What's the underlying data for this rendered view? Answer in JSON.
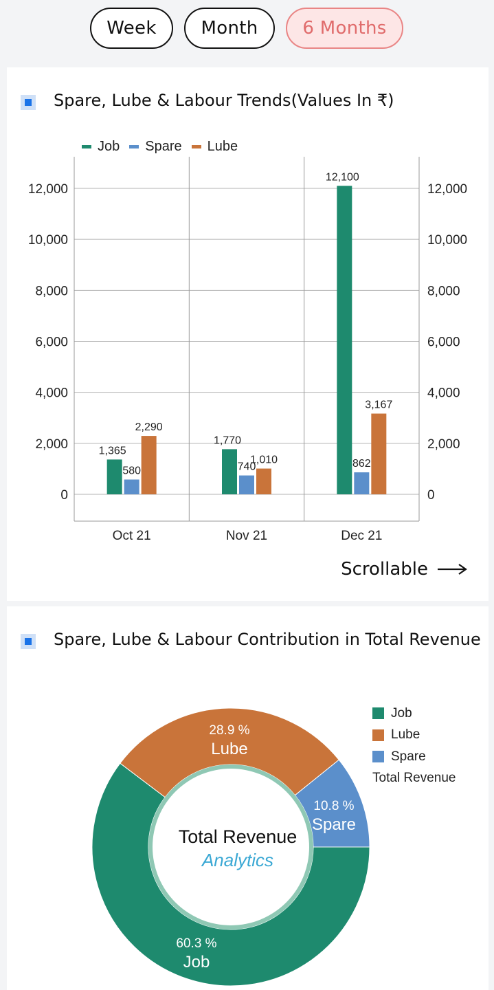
{
  "tabs": [
    {
      "label": "Week",
      "active": false
    },
    {
      "label": "Month",
      "active": false
    },
    {
      "label": "6 Months",
      "active": true
    }
  ],
  "colors": {
    "job": "#1e8a6e",
    "spare": "#5b8fcb",
    "lube": "#c9743a",
    "tab_active": "#e06b6b"
  },
  "bar_card": {
    "title": "Spare, Lube & Labour Trends(Values In ₹)",
    "legend": [
      "Job",
      "Spare",
      "Lube"
    ],
    "scroll_hint": "Scrollable"
  },
  "pie_card": {
    "title": "Spare, Lube & Labour Contribution in Total Revenue",
    "legend": [
      "Job",
      "Lube",
      "Spare",
      "Total Revenue"
    ],
    "center_line1": "Total Revenue",
    "center_line2": "Analytics",
    "slice_labels": [
      {
        "pct": "60.3 %",
        "name": "Job"
      },
      {
        "pct": "28.9 %",
        "name": "Lube"
      },
      {
        "pct": "10.8 %",
        "name": "Spare"
      }
    ]
  },
  "chart_data": [
    {
      "type": "bar",
      "title": "Spare, Lube & Labour Trends(Values In ₹)",
      "categories": [
        "Oct 21",
        "Nov 21",
        "Dec 21"
      ],
      "series": [
        {
          "name": "Job",
          "values": [
            1365,
            1770,
            12100
          ],
          "labels": [
            "1,365",
            "1,770",
            "12,100"
          ]
        },
        {
          "name": "Spare",
          "values": [
            580,
            740,
            862
          ],
          "labels": [
            "580",
            "740",
            "862"
          ]
        },
        {
          "name": "Lube",
          "values": [
            2290,
            1010,
            3167
          ],
          "labels": [
            "2,290",
            "1,010",
            "3,167"
          ]
        }
      ],
      "yticks": [
        "0",
        "2,000",
        "4,000",
        "6,000",
        "8,000",
        "10,000",
        "12,000"
      ],
      "ytick_values": [
        0,
        2000,
        4000,
        6000,
        8000,
        10000,
        12000
      ],
      "ylim": [
        -1000,
        13200
      ],
      "legend_position": "top-left",
      "grid": true
    },
    {
      "type": "pie",
      "title": "Spare, Lube & Labour Contribution in Total Revenue",
      "slices": [
        {
          "name": "Job",
          "value": 60.3
        },
        {
          "name": "Lube",
          "value": 28.9
        },
        {
          "name": "Spare",
          "value": 10.8
        }
      ],
      "donut": true
    }
  ]
}
